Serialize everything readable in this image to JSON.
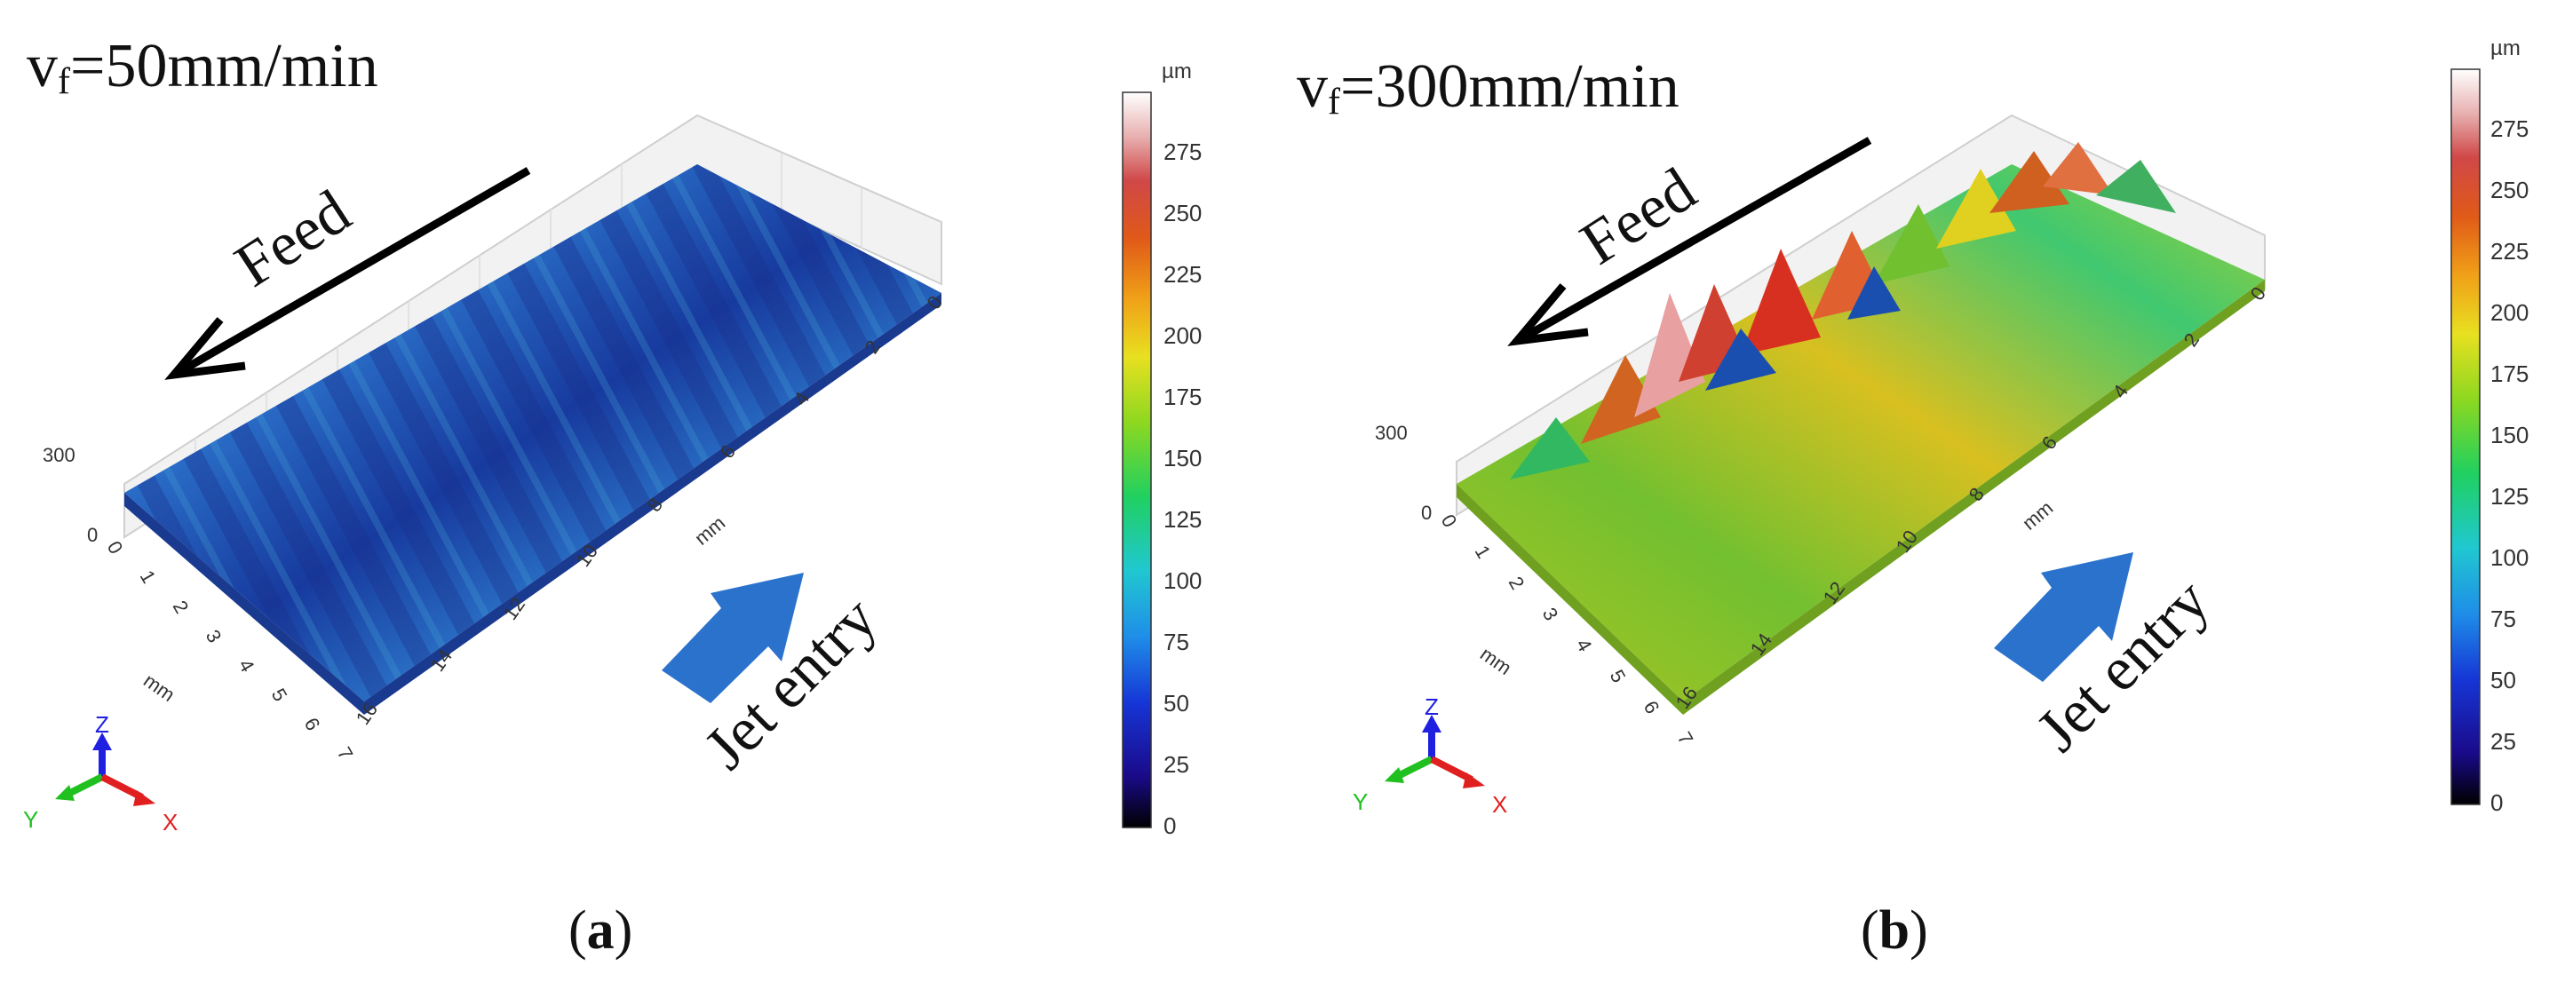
{
  "panels": [
    {
      "id": "a",
      "speed_prefix": "v",
      "speed_subscript": "f",
      "speed_value": "=50mm/min",
      "feed_label": "Feed",
      "jet_label": "Jet entry",
      "z_tick": "300",
      "z_zero": "0",
      "x_ticks": [
        "0",
        "2",
        "4",
        "6",
        "8",
        "10",
        "12",
        "14",
        "16"
      ],
      "y_ticks": [
        "0",
        "1",
        "2",
        "3",
        "4",
        "5",
        "6",
        "7"
      ],
      "x_unit": "mm",
      "y_unit": "mm",
      "axis_labels": {
        "z": "Z",
        "y": "Y",
        "x": "X"
      },
      "colorbar_unit": "µm",
      "colorbar_ticks": [
        "275",
        "250",
        "225",
        "200",
        "175",
        "150",
        "125",
        "100",
        "75",
        "50",
        "25",
        "0"
      ],
      "caption": "a",
      "surface_color": "#1f4fb5"
    },
    {
      "id": "b",
      "speed_prefix": "v",
      "speed_subscript": "f",
      "speed_value": "=300mm/min",
      "feed_label": "Feed",
      "jet_label": "Jet entry",
      "z_tick": "300",
      "z_zero": "0",
      "x_ticks": [
        "0",
        "2",
        "4",
        "6",
        "8",
        "10",
        "12",
        "14",
        "16"
      ],
      "y_ticks": [
        "0",
        "1",
        "2",
        "3",
        "4",
        "5",
        "6",
        "7"
      ],
      "x_unit": "mm",
      "y_unit": "mm",
      "axis_labels": {
        "z": "Z",
        "y": "Y",
        "x": "X"
      },
      "colorbar_unit": "µm",
      "colorbar_ticks": [
        "275",
        "250",
        "225",
        "200",
        "175",
        "150",
        "125",
        "100",
        "75",
        "50",
        "25",
        "0"
      ],
      "caption": "b",
      "surface_color": "#8cbf2a"
    }
  ],
  "colors": {
    "feed_arrow": "#000000",
    "jet_arrow": "#2a72cc",
    "axis_z": "#2020e0",
    "axis_y": "#20c020",
    "axis_x": "#e02020"
  }
}
